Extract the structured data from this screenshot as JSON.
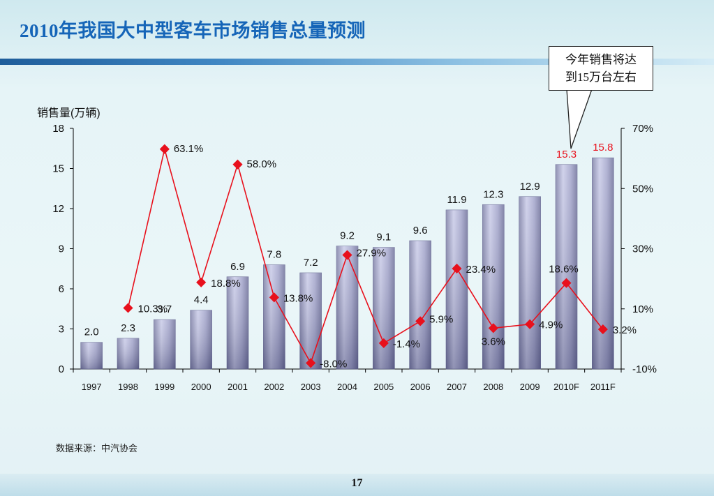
{
  "slide": {
    "title": "2010年我国大中型客车市场销售总量预测",
    "callout_line1": "今年销售将达",
    "callout_line2": "到15万台左右",
    "source": "数据来源：中汽协会",
    "page_number": "17"
  },
  "chart_data": {
    "type": "bar",
    "categories": [
      "1997",
      "1998",
      "1999",
      "2000",
      "2001",
      "2002",
      "2003",
      "2004",
      "2005",
      "2006",
      "2007",
      "2008",
      "2009",
      "2010F",
      "2011F"
    ],
    "ylabel": "销售量(万辆)",
    "ylim": [
      0,
      18
    ],
    "yticks": [
      "0",
      "3",
      "6",
      "9",
      "12",
      "15",
      "18"
    ],
    "y2lim": [
      -10,
      70
    ],
    "y2ticks": [
      "-10%",
      "10%",
      "30%",
      "50%",
      "70%"
    ],
    "series": [
      {
        "type": "bar",
        "values": [
          2.0,
          2.3,
          3.7,
          4.4,
          6.9,
          7.8,
          7.2,
          9.2,
          9.1,
          9.6,
          11.9,
          12.3,
          12.9,
          15.3,
          15.8
        ],
        "labels": [
          "2.0",
          "2.3",
          "3.7",
          "4.4",
          "6.9",
          "7.8",
          "7.2",
          "9.2",
          "9.1",
          "9.6",
          "11.9",
          "12.3",
          "12.9",
          "15.3",
          "15.8"
        ],
        "highlight_color": "#e8101c",
        "highlight_from": "2010F"
      },
      {
        "type": "line",
        "axis": "right",
        "values": [
          null,
          10.3,
          63.1,
          18.8,
          58.0,
          13.8,
          -8.0,
          27.9,
          -1.4,
          5.9,
          23.4,
          3.6,
          4.9,
          18.6,
          3.2
        ],
        "labels": [
          "",
          "10.3%",
          "63.1%",
          "18.8%",
          "58.0%",
          "13.8%",
          "-8.0%",
          "27.9%",
          "-1.4%",
          "5.9%",
          "23.4%",
          "3.6%",
          "4.9%",
          "18.6%",
          "3.2%"
        ],
        "color": "#e8101c"
      }
    ],
    "grid": false,
    "legend": "none"
  }
}
